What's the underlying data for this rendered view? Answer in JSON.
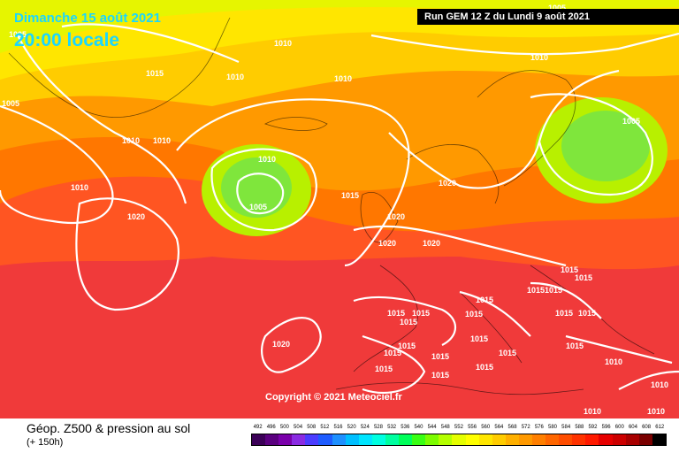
{
  "header": {
    "date": "Dimanche 15 août 2021",
    "time": "20:00 locale",
    "run": "Run GEM 12 Z du Lundi 9 août 2021"
  },
  "copyright": "Copyright © 2021 Meteociel.fr",
  "footer": {
    "title": "Géop. Z500 & pression au sol",
    "subtitle": "(+ 150h)"
  },
  "legend": {
    "values": [
      "492",
      "496",
      "500",
      "504",
      "508",
      "512",
      "516",
      "520",
      "524",
      "528",
      "532",
      "536",
      "540",
      "544",
      "548",
      "552",
      "556",
      "560",
      "564",
      "568",
      "572",
      "576",
      "580",
      "584",
      "588",
      "592",
      "596",
      "600",
      "604",
      "608",
      "612"
    ],
    "colors": [
      "#3b0057",
      "#5a007f",
      "#7a00aa",
      "#8a2be2",
      "#4b3cff",
      "#1e5cff",
      "#1e90ff",
      "#00bfff",
      "#00e5ff",
      "#00ffe1",
      "#00ffa0",
      "#00ff5a",
      "#39ff14",
      "#7cfc00",
      "#b4ff00",
      "#e5ff00",
      "#ffff00",
      "#ffe600",
      "#ffcc00",
      "#ffb000",
      "#ff9900",
      "#ff7f00",
      "#ff6600",
      "#ff4d00",
      "#ff3300",
      "#ff1a00",
      "#e60000",
      "#cc0000",
      "#a80000",
      "#7a0000",
      "#000000"
    ]
  },
  "map": {
    "colors": {
      "green": "#7fe63c",
      "light_green": "#b8f000",
      "yellow_green": "#e6f500",
      "yellow": "#ffe600",
      "gold": "#ffcc00",
      "orange": "#ff9900",
      "dark_orange": "#ff7700",
      "red_orange": "#ff5522",
      "red": "#f03a3a"
    },
    "isobars": [
      "1005",
      "1010",
      "1010",
      "1010",
      "1005",
      "1015",
      "1010",
      "1010",
      "1010",
      "1010",
      "1020",
      "1010",
      "1005",
      "1015",
      "1020",
      "1020",
      "1020",
      "1020",
      "1005",
      "1005",
      "1015",
      "1015",
      "1015",
      "1015",
      "1015",
      "1015",
      "1015",
      "1015",
      "1015",
      "1015",
      "1015",
      "1015",
      "1015",
      "1015",
      "1015",
      "1015",
      "1015",
      "1015",
      "1015",
      "1015",
      "1020",
      "1010",
      "1010",
      "1010",
      "1010"
    ]
  }
}
